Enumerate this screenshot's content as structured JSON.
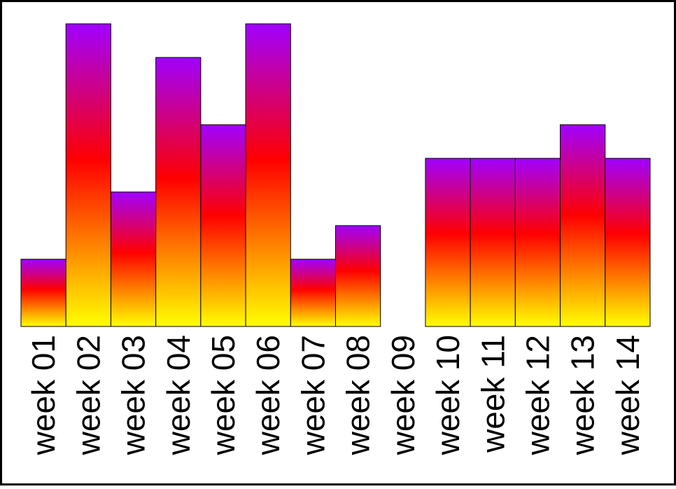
{
  "chart_data": {
    "type": "bar",
    "categories": [
      "week 01",
      "week 02",
      "week 03",
      "week 04",
      "week 05",
      "week 06",
      "week 07",
      "week 08",
      "week 09",
      "week 10",
      "week 11",
      "week 12",
      "week 13",
      "week 14"
    ],
    "values": [
      2,
      9,
      4,
      8,
      6,
      9,
      2,
      3,
      0,
      5,
      5,
      5,
      6,
      5
    ],
    "ylim": [
      0,
      9
    ],
    "grid": false,
    "legend": "none",
    "colors": {
      "bar_top": "#a000ff",
      "bar_middle": "#ff0000",
      "bar_bottom": "#ffff00",
      "bar_outline": "#000000",
      "frame": "#000000",
      "background": "#ffffff",
      "label": "#000000"
    }
  }
}
